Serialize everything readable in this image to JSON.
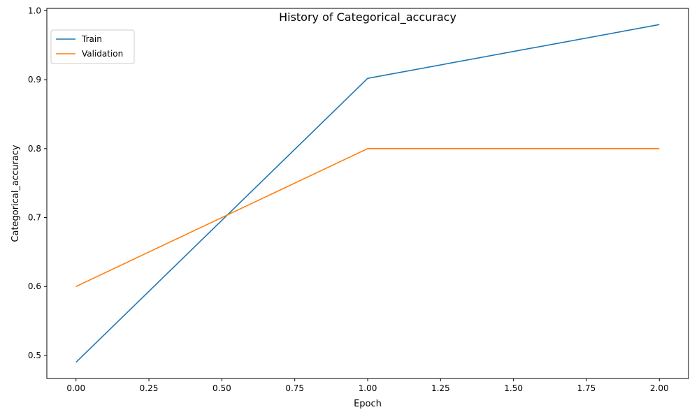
{
  "chart_data": {
    "type": "line",
    "title": "History of Categorical_accuracy",
    "xlabel": "Epoch",
    "ylabel": "Categorical_accuracy",
    "xlim": [
      -0.1,
      2.1
    ],
    "ylim": [
      0.4665,
      1.0035
    ],
    "x_ticks": [
      0.0,
      0.25,
      0.5,
      0.75,
      1.0,
      1.25,
      1.5,
      1.75,
      2.0
    ],
    "x_tick_labels": [
      "0.00",
      "0.25",
      "0.50",
      "0.75",
      "1.00",
      "1.25",
      "1.50",
      "1.75",
      "2.00"
    ],
    "y_ticks": [
      0.5,
      0.6,
      0.7,
      0.8,
      0.9,
      1.0
    ],
    "y_tick_labels": [
      "0.5",
      "0.6",
      "0.7",
      "0.8",
      "0.9",
      "1.0"
    ],
    "grid": false,
    "legend_position": "top-left",
    "x": [
      0,
      1,
      2
    ],
    "series": [
      {
        "name": "Train",
        "color": "#1f77b4",
        "values": [
          0.49,
          0.902,
          0.98
        ]
      },
      {
        "name": "Validation",
        "color": "#ff7f0e",
        "values": [
          0.6,
          0.8,
          0.8
        ]
      }
    ]
  }
}
